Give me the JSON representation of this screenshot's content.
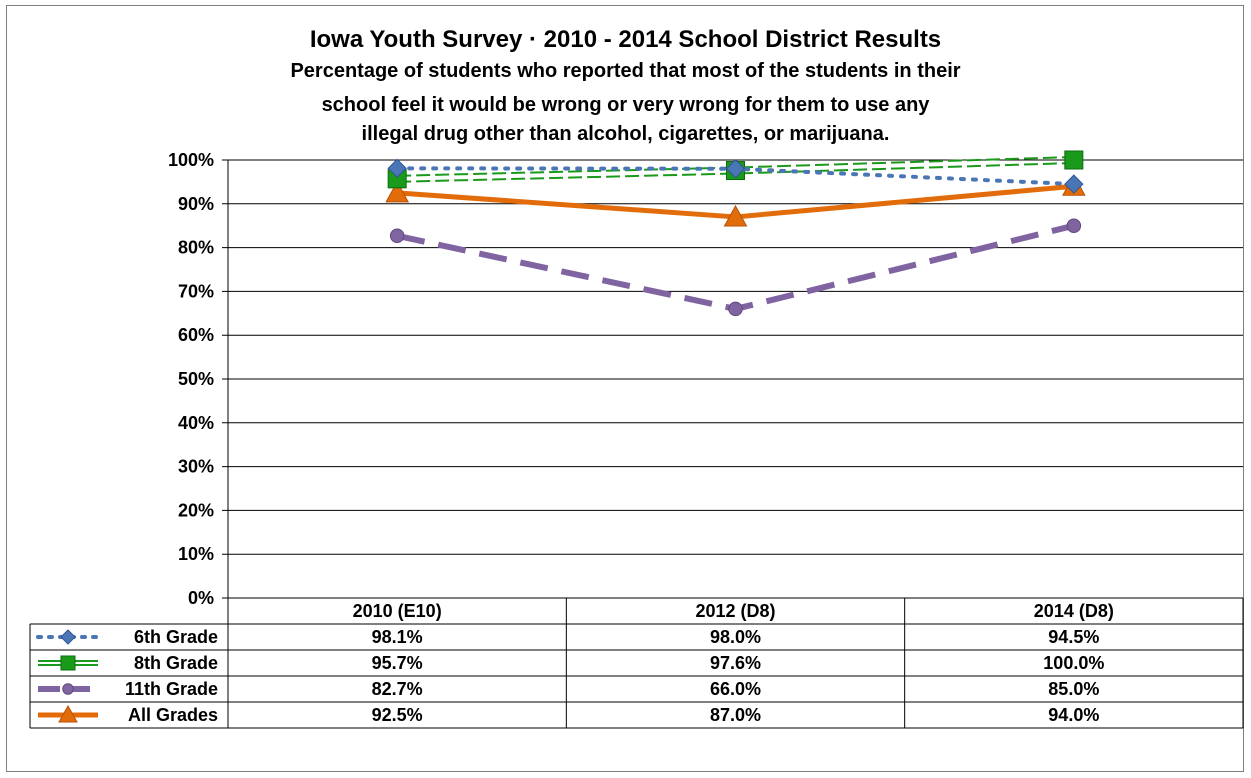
{
  "chart_data": {
    "type": "line",
    "title": "Iowa Youth Survey · 2010 - 2014 School District Results",
    "subtitle_lines": [
      "Percentage of students who reported that most of the students in their",
      "school feel it would be wrong or very wrong for them to use any",
      "illegal drug other than alcohol, cigarettes, or marijuana."
    ],
    "categories": [
      "2010 (E10)",
      "2012 (D8)",
      "2014 (D8)"
    ],
    "ylim": [
      0,
      100
    ],
    "yticks": [
      "0%",
      "10%",
      "20%",
      "30%",
      "40%",
      "50%",
      "60%",
      "70%",
      "80%",
      "90%",
      "100%"
    ],
    "grid": true,
    "legend_placement": "data-table-left",
    "series": [
      {
        "name": "6th Grade",
        "values": [
          98.1,
          98.0,
          94.5
        ],
        "labels": [
          "98.1%",
          "98.0%",
          "94.5%"
        ],
        "color": "#4a76b5",
        "marker": "diamond",
        "dash": "dotted"
      },
      {
        "name": "8th Grade",
        "values": [
          95.7,
          97.6,
          100.0
        ],
        "labels": [
          "95.7%",
          "97.6%",
          "100.0%"
        ],
        "color": "#1a9a1a",
        "marker": "square",
        "dash": "double-dashed"
      },
      {
        "name": "11th Grade",
        "values": [
          82.7,
          66.0,
          85.0
        ],
        "labels": [
          "82.7%",
          "66.0%",
          "85.0%"
        ],
        "color": "#8064a2",
        "marker": "circle",
        "dash": "long-dash"
      },
      {
        "name": "All Grades",
        "values": [
          92.5,
          87.0,
          94.0
        ],
        "labels": [
          "92.5%",
          "87.0%",
          "94.0%"
        ],
        "color": "#e36c0a",
        "marker": "triangle",
        "dash": "solid"
      }
    ]
  }
}
